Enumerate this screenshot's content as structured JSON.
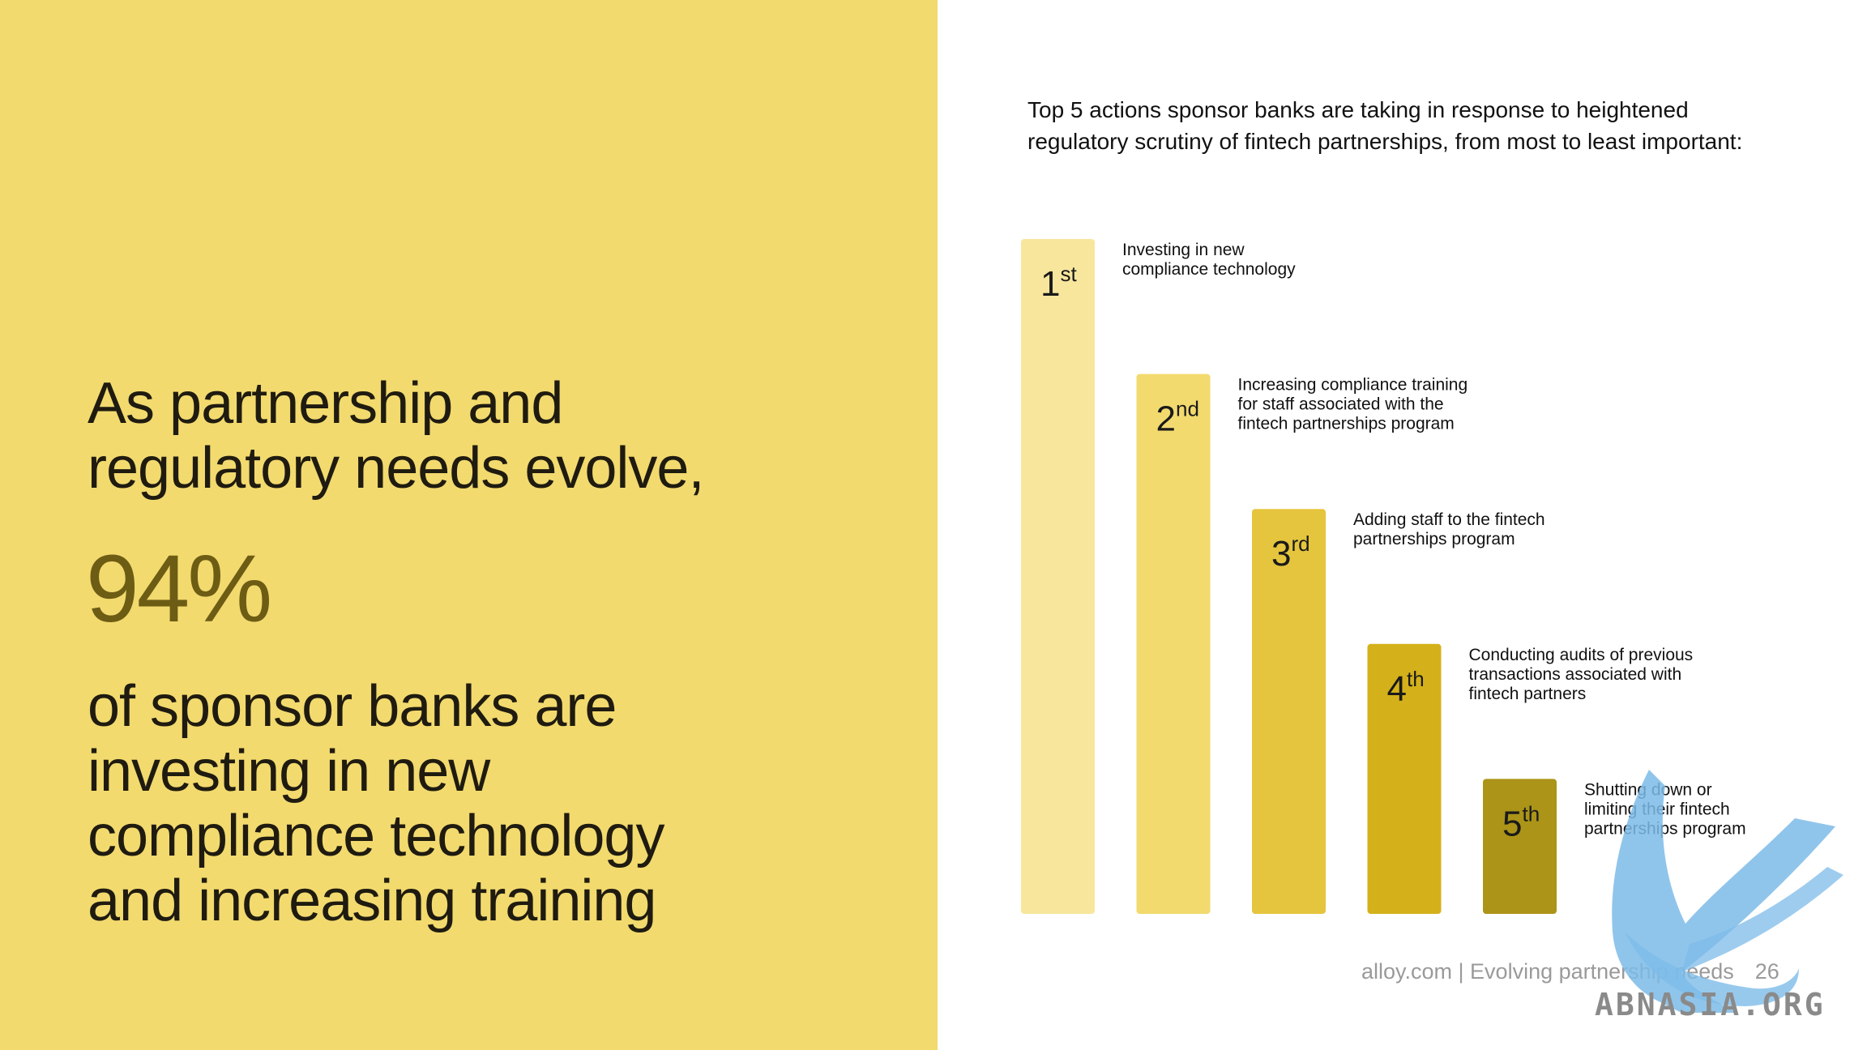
{
  "left_panel": {
    "headline_lines": [
      "As partnership and",
      "regulatory needs evolve,"
    ],
    "stat": "94%",
    "body_lines": [
      "of sponsor banks are",
      "investing in new",
      "compliance technology",
      "and increasing training"
    ]
  },
  "chart_data": {
    "type": "bar",
    "title": "Top 5 actions sponsor banks are taking in response to heightened regulatory scrutiny of fintech partnerships, from most to least important:",
    "title_lines": [
      "Top 5 actions sponsor banks are taking in response to heightened",
      "regulatory scrutiny of fintech partnerships, from most to least important:"
    ],
    "categories": [
      "Investing in new compliance technology",
      "Increasing compliance training for staff associated with the fintech partnerships program",
      "Adding staff to the fintech partnerships program",
      "Conducting audits of previous transactions associated with fintech partners",
      "Shutting down or limiting their fintech partnerships program"
    ],
    "values": [
      5,
      4,
      3,
      2,
      1
    ],
    "ylim": [
      0,
      5.5
    ],
    "rank_labels": [
      {
        "num": "1",
        "suffix": "st"
      },
      {
        "num": "2",
        "suffix": "nd"
      },
      {
        "num": "3",
        "suffix": "rd"
      },
      {
        "num": "4",
        "suffix": "th"
      },
      {
        "num": "5",
        "suffix": "th"
      }
    ],
    "label_lines": [
      [
        "Investing in new",
        "compliance technology"
      ],
      [
        "Increasing compliance training",
        "for staff associated with the",
        "fintech partnerships program"
      ],
      [
        "Adding staff to the fintech",
        "partnerships program"
      ],
      [
        "Conducting audits of previous",
        "transactions associated with",
        "fintech partners"
      ],
      [
        "Shutting down or",
        "limiting their fintech",
        "partnerships program"
      ]
    ],
    "colors": [
      "#f8e69d",
      "#f2da6e",
      "#e5c53e",
      "#d4b11a",
      "#ab9418"
    ],
    "grid": false,
    "legend": "none"
  },
  "footer": {
    "source": "alloy.com | Evolving partnership needs",
    "page_number": "26"
  },
  "watermark": {
    "text": "ABNASIA.ORG",
    "icon": "phoenix-icon"
  }
}
